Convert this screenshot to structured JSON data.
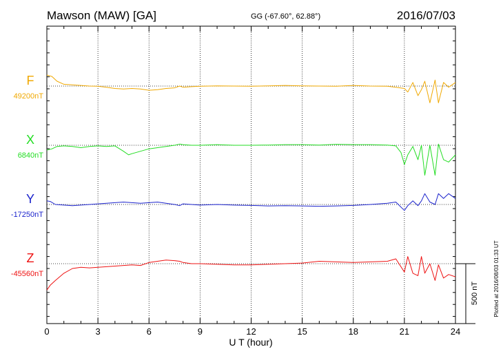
{
  "header": {
    "station": "Mawson (MAW)  [GA]",
    "coords": "GG (-67.60°,  62.88°)",
    "date": "2016/07/03"
  },
  "side_note": "Plotted at 2016/08/03 01:33 UT",
  "scale_bar": {
    "label": "500 nT",
    "value_nT": 500
  },
  "chart_data": {
    "type": "line",
    "title": "",
    "xlabel": "U T (hour)",
    "ylabel": "",
    "xlim": [
      0,
      24
    ],
    "xticks": [
      "0",
      "3",
      "6",
      "9",
      "12",
      "15",
      "18",
      "21",
      "24"
    ],
    "grid": true,
    "series": [
      {
        "name": "F",
        "baseline_label": "49200nT",
        "color": "#f0a800",
        "baseline_nT": 49200,
        "x": [
          0,
          0.3,
          0.6,
          1,
          1.5,
          2,
          2.5,
          3,
          3.5,
          4,
          4.5,
          5,
          5.5,
          6,
          6.5,
          7,
          7.5,
          7.8,
          8,
          8.5,
          9,
          10,
          11,
          12,
          13,
          14,
          15,
          16,
          17,
          18,
          19,
          20,
          20.5,
          21,
          21.2,
          21.5,
          21.8,
          22,
          22.2,
          22.5,
          22.8,
          23,
          23.3,
          23.6,
          24
        ],
        "y": [
          49292,
          49280,
          49240,
          49215,
          49210,
          49205,
          49200,
          49198,
          49190,
          49180,
          49175,
          49180,
          49175,
          49165,
          49170,
          49180,
          49185,
          49200,
          49190,
          49195,
          49198,
          49202,
          49200,
          49198,
          49202,
          49205,
          49202,
          49200,
          49198,
          49205,
          49200,
          49198,
          49190,
          49180,
          49150,
          49230,
          49120,
          49170,
          49240,
          49060,
          49250,
          49060,
          49230,
          49190,
          49230
        ]
      },
      {
        "name": "X",
        "baseline_label": "6840nT",
        "color": "#22dd22",
        "baseline_nT": 6840,
        "x": [
          0,
          0.3,
          0.6,
          1,
          1.5,
          2,
          2.5,
          3,
          3.5,
          4,
          4.5,
          4.8,
          5,
          5.5,
          6,
          6.5,
          7,
          7.5,
          7.8,
          8,
          8.5,
          9,
          10,
          11,
          12,
          13,
          14,
          15,
          16,
          17,
          18,
          19,
          20,
          20.5,
          20.8,
          21,
          21.2,
          21.5,
          21.8,
          22,
          22.2,
          22.5,
          22.8,
          23,
          23.3,
          23.6,
          24
        ],
        "y": [
          6800,
          6810,
          6830,
          6835,
          6830,
          6820,
          6830,
          6835,
          6830,
          6835,
          6790,
          6760,
          6770,
          6790,
          6810,
          6820,
          6830,
          6840,
          6850,
          6845,
          6840,
          6840,
          6845,
          6840,
          6840,
          6842,
          6845,
          6845,
          6842,
          6848,
          6845,
          6845,
          6842,
          6835,
          6780,
          6680,
          6760,
          6830,
          6720,
          6840,
          6590,
          6840,
          6590,
          6850,
          6720,
          6700,
          6760
        ]
      },
      {
        "name": "Y",
        "baseline_label": "-17250nT",
        "color": "#1a22cc",
        "baseline_nT": -17250,
        "x": [
          0,
          0.2,
          0.5,
          1,
          1.5,
          2,
          2.5,
          3,
          3.5,
          4,
          4.5,
          5,
          5.5,
          6,
          6.5,
          7,
          7.5,
          7.8,
          8,
          8.5,
          9,
          10,
          11,
          12,
          13,
          14,
          15,
          16,
          17,
          18,
          19,
          20,
          20.5,
          21,
          21.2,
          21.5,
          21.8,
          22,
          22.2,
          22.5,
          22.8,
          23,
          23.3,
          23.6,
          24
        ],
        "y": [
          -17220,
          -17225,
          -17250,
          -17255,
          -17260,
          -17255,
          -17250,
          -17245,
          -17240,
          -17235,
          -17230,
          -17235,
          -17240,
          -17235,
          -17230,
          -17240,
          -17250,
          -17260,
          -17245,
          -17250,
          -17255,
          -17250,
          -17255,
          -17258,
          -17262,
          -17260,
          -17262,
          -17265,
          -17262,
          -17258,
          -17250,
          -17240,
          -17230,
          -17300,
          -17260,
          -17220,
          -17260,
          -17220,
          -17160,
          -17230,
          -17250,
          -17160,
          -17200,
          -17160,
          -17200
        ]
      },
      {
        "name": "Z",
        "baseline_label": "-45560nT",
        "color": "#ee1111",
        "baseline_nT": -45560,
        "x": [
          0,
          0.2,
          0.5,
          1,
          1.5,
          2,
          2.5,
          3,
          3.5,
          4,
          4.5,
          5,
          5.5,
          6,
          6.5,
          7,
          7.5,
          7.8,
          8,
          8.5,
          9,
          10,
          11,
          12,
          13,
          14,
          15,
          16,
          17,
          18,
          19,
          20,
          20.5,
          21,
          21.2,
          21.5,
          21.8,
          22,
          22.2,
          22.5,
          22.8,
          23,
          23.3,
          23.6,
          24
        ],
        "y": [
          -45780,
          -45740,
          -45700,
          -45640,
          -45600,
          -45590,
          -45595,
          -45590,
          -45585,
          -45580,
          -45575,
          -45570,
          -45575,
          -45550,
          -45540,
          -45530,
          -45535,
          -45540,
          -45550,
          -45560,
          -45560,
          -45565,
          -45570,
          -45570,
          -45565,
          -45560,
          -45555,
          -45540,
          -45545,
          -45550,
          -45545,
          -45540,
          -45520,
          -45630,
          -45500,
          -45640,
          -45660,
          -45500,
          -45640,
          -45560,
          -45700,
          -45570,
          -45680,
          -45650,
          -45670
        ]
      }
    ]
  }
}
